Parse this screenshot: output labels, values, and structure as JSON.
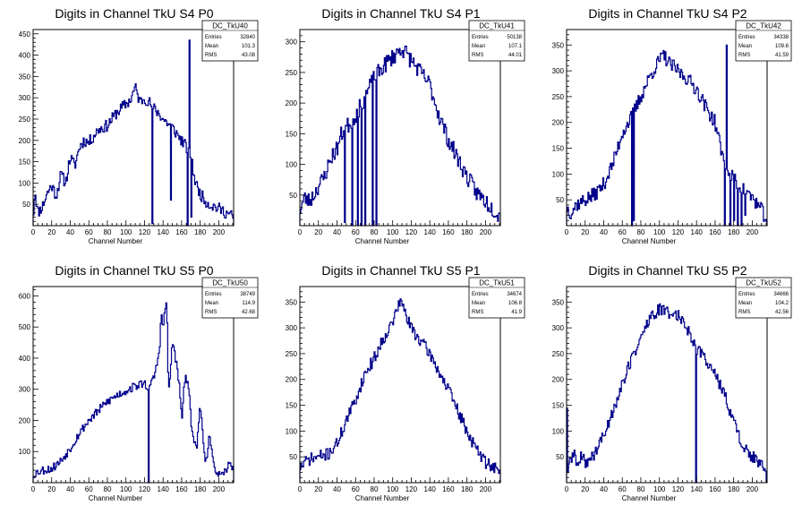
{
  "style": {
    "line_color": "#00008b",
    "axis_color": "#000000",
    "background": "#ffffff"
  },
  "chart_data": [
    {
      "type": "histogram",
      "title": "Digits in Channel TkU S4 P0",
      "xlabel": "Channel Number",
      "xlim": [
        0,
        216
      ],
      "ylim": [
        0,
        460
      ],
      "xticks": [
        0,
        20,
        40,
        60,
        80,
        100,
        120,
        140,
        160,
        180,
        200
      ],
      "yticks": [
        50,
        100,
        150,
        200,
        250,
        300,
        350,
        400,
        450
      ],
      "stats": {
        "name": "DC_TkU40",
        "entries": "32840",
        "mean": "101.3",
        "rms": "43.08"
      },
      "profile": [
        [
          0,
          15
        ],
        [
          2,
          85
        ],
        [
          5,
          30
        ],
        [
          10,
          45
        ],
        [
          15,
          75
        ],
        [
          20,
          95
        ],
        [
          25,
          70
        ],
        [
          30,
          120
        ],
        [
          35,
          100
        ],
        [
          40,
          160
        ],
        [
          45,
          140
        ],
        [
          50,
          185
        ],
        [
          55,
          200
        ],
        [
          60,
          195
        ],
        [
          70,
          225
        ],
        [
          80,
          235
        ],
        [
          90,
          265
        ],
        [
          100,
          285
        ],
        [
          105,
          295
        ],
        [
          110,
          325
        ],
        [
          115,
          290
        ],
        [
          120,
          300
        ],
        [
          125,
          290
        ],
        [
          130,
          275
        ],
        [
          135,
          265
        ],
        [
          140,
          250
        ],
        [
          150,
          230
        ],
        [
          160,
          200
        ],
        [
          165,
          185
        ],
        [
          170,
          160
        ],
        [
          175,
          100
        ],
        [
          180,
          75
        ],
        [
          185,
          60
        ],
        [
          190,
          50
        ],
        [
          200,
          40
        ],
        [
          210,
          28
        ],
        [
          216,
          20
        ]
      ],
      "spikes": [
        [
          128,
          5
        ],
        [
          148,
          60
        ],
        [
          166,
          0
        ],
        [
          168,
          435
        ],
        [
          170,
          20
        ]
      ],
      "amp": 14,
      "seed": 11
    },
    {
      "type": "histogram",
      "title": "Digits in Channel TkU S4 P1",
      "xlabel": "Channel Number",
      "xlim": [
        0,
        216
      ],
      "ylim": [
        0,
        320
      ],
      "xticks": [
        0,
        20,
        40,
        60,
        80,
        100,
        120,
        140,
        160,
        180,
        200
      ],
      "yticks": [
        50,
        100,
        150,
        200,
        250,
        300
      ],
      "stats": {
        "name": "DC_TkU41",
        "entries": "50138",
        "mean": "107.1",
        "rms": "44.01"
      },
      "profile": [
        [
          0,
          25
        ],
        [
          5,
          45
        ],
        [
          10,
          40
        ],
        [
          15,
          50
        ],
        [
          20,
          65
        ],
        [
          25,
          75
        ],
        [
          30,
          95
        ],
        [
          35,
          115
        ],
        [
          40,
          125
        ],
        [
          45,
          150
        ],
        [
          50,
          160
        ],
        [
          60,
          180
        ],
        [
          70,
          210
        ],
        [
          80,
          240
        ],
        [
          90,
          260
        ],
        [
          100,
          275
        ],
        [
          110,
          290
        ],
        [
          120,
          270
        ],
        [
          130,
          250
        ],
        [
          140,
          230
        ],
        [
          150,
          180
        ],
        [
          160,
          140
        ],
        [
          170,
          110
        ],
        [
          180,
          80
        ],
        [
          190,
          55
        ],
        [
          200,
          40
        ],
        [
          210,
          25
        ],
        [
          216,
          15
        ]
      ],
      "spikes": [
        [
          48,
          5
        ],
        [
          56,
          0
        ],
        [
          62,
          0
        ],
        [
          66,
          0
        ],
        [
          70,
          0
        ],
        [
          78,
          0
        ],
        [
          82,
          0
        ]
      ],
      "amp": 14,
      "seed": 23
    },
    {
      "type": "histogram",
      "title": "Digits in Channel TkU S4 P2",
      "xlabel": "Channel Number",
      "xlim": [
        0,
        216
      ],
      "ylim": [
        0,
        380
      ],
      "xticks": [
        0,
        20,
        40,
        60,
        80,
        100,
        120,
        140,
        160,
        180,
        200
      ],
      "yticks": [
        50,
        100,
        150,
        200,
        250,
        300,
        350
      ],
      "stats": {
        "name": "DC_TkU42",
        "entries": "34338",
        "mean": "109.6",
        "rms": "41.59"
      },
      "profile": [
        [
          0,
          35
        ],
        [
          5,
          25
        ],
        [
          10,
          40
        ],
        [
          20,
          50
        ],
        [
          30,
          60
        ],
        [
          40,
          80
        ],
        [
          50,
          120
        ],
        [
          60,
          180
        ],
        [
          70,
          210
        ],
        [
          80,
          250
        ],
        [
          90,
          290
        ],
        [
          100,
          320
        ],
        [
          105,
          330
        ],
        [
          110,
          315
        ],
        [
          120,
          300
        ],
        [
          130,
          285
        ],
        [
          140,
          265
        ],
        [
          150,
          230
        ],
        [
          160,
          200
        ],
        [
          165,
          160
        ],
        [
          170,
          120
        ],
        [
          180,
          90
        ],
        [
          190,
          70
        ],
        [
          200,
          55
        ],
        [
          210,
          30
        ],
        [
          216,
          10
        ]
      ],
      "spikes": [
        [
          70,
          0
        ],
        [
          72,
          10
        ],
        [
          170,
          0
        ],
        [
          172,
          350
        ],
        [
          176,
          0
        ],
        [
          180,
          10
        ],
        [
          184,
          0
        ],
        [
          188,
          0
        ],
        [
          192,
          20
        ]
      ],
      "amp": 14,
      "seed": 37
    },
    {
      "type": "histogram",
      "title": "Digits in Channel TkU S5 P0",
      "xlabel": "Channel Number",
      "xlim": [
        0,
        216
      ],
      "ylim": [
        0,
        630
      ],
      "xticks": [
        0,
        20,
        40,
        60,
        80,
        100,
        120,
        140,
        160,
        180,
        200
      ],
      "yticks": [
        100,
        200,
        300,
        400,
        500,
        600
      ],
      "stats": {
        "name": "DC_TkU50",
        "entries": "38749",
        "mean": "114.9",
        "rms": "42.68"
      },
      "profile": [
        [
          0,
          25
        ],
        [
          5,
          35
        ],
        [
          10,
          40
        ],
        [
          20,
          45
        ],
        [
          30,
          70
        ],
        [
          40,
          110
        ],
        [
          50,
          160
        ],
        [
          60,
          200
        ],
        [
          70,
          230
        ],
        [
          80,
          260
        ],
        [
          90,
          280
        ],
        [
          100,
          295
        ],
        [
          110,
          310
        ],
        [
          120,
          320
        ],
        [
          125,
          300
        ],
        [
          128,
          320
        ],
        [
          132,
          360
        ],
        [
          136,
          420
        ],
        [
          138,
          540
        ],
        [
          140,
          500
        ],
        [
          144,
          590
        ],
        [
          146,
          280
        ],
        [
          148,
          350
        ],
        [
          150,
          460
        ],
        [
          154,
          390
        ],
        [
          158,
          300
        ],
        [
          160,
          200
        ],
        [
          164,
          350
        ],
        [
          168,
          290
        ],
        [
          170,
          200
        ],
        [
          176,
          100
        ],
        [
          180,
          250
        ],
        [
          186,
          60
        ],
        [
          190,
          150
        ],
        [
          194,
          60
        ],
        [
          200,
          25
        ],
        [
          205,
          20
        ],
        [
          210,
          55
        ],
        [
          216,
          55
        ]
      ],
      "spikes": [
        [
          124,
          0
        ]
      ],
      "amp": 14,
      "seed": 53
    },
    {
      "type": "histogram",
      "title": "Digits in Channel TkU S5 P1",
      "xlabel": "Channel Number",
      "xlim": [
        0,
        216
      ],
      "ylim": [
        0,
        380
      ],
      "xticks": [
        0,
        20,
        40,
        60,
        80,
        100,
        120,
        140,
        160,
        180,
        200
      ],
      "yticks": [
        50,
        100,
        150,
        200,
        250,
        300,
        350
      ],
      "stats": {
        "name": "DC_TkU51",
        "entries": "34674",
        "mean": "106.8",
        "rms": "41.9"
      },
      "profile": [
        [
          0,
          30
        ],
        [
          10,
          45
        ],
        [
          20,
          50
        ],
        [
          30,
          55
        ],
        [
          40,
          75
        ],
        [
          50,
          120
        ],
        [
          60,
          160
        ],
        [
          70,
          210
        ],
        [
          80,
          240
        ],
        [
          90,
          280
        ],
        [
          100,
          310
        ],
        [
          105,
          340
        ],
        [
          110,
          350
        ],
        [
          115,
          320
        ],
        [
          120,
          300
        ],
        [
          130,
          275
        ],
        [
          140,
          250
        ],
        [
          150,
          215
        ],
        [
          160,
          180
        ],
        [
          170,
          140
        ],
        [
          180,
          100
        ],
        [
          190,
          65
        ],
        [
          200,
          40
        ],
        [
          210,
          30
        ],
        [
          216,
          15
        ]
      ],
      "spikes": [],
      "amp": 12,
      "seed": 71
    },
    {
      "type": "histogram",
      "title": "Digits in Channel TkU S5 P2",
      "xlabel": "Channel Number",
      "xlim": [
        0,
        216
      ],
      "ylim": [
        0,
        380
      ],
      "xticks": [
        0,
        20,
        40,
        60,
        80,
        100,
        120,
        140,
        160,
        180,
        200
      ],
      "yticks": [
        50,
        100,
        150,
        200,
        250,
        300,
        350
      ],
      "stats": {
        "name": "DC_TkU52",
        "entries": "34666",
        "mean": "104.2",
        "rms": "42.56"
      },
      "profile": [
        [
          0,
          280
        ],
        [
          1,
          20
        ],
        [
          4,
          40
        ],
        [
          8,
          60
        ],
        [
          12,
          30
        ],
        [
          16,
          50
        ],
        [
          20,
          40
        ],
        [
          25,
          45
        ],
        [
          30,
          55
        ],
        [
          35,
          75
        ],
        [
          40,
          90
        ],
        [
          50,
          140
        ],
        [
          60,
          190
        ],
        [
          70,
          240
        ],
        [
          80,
          280
        ],
        [
          90,
          320
        ],
        [
          100,
          335
        ],
        [
          110,
          330
        ],
        [
          120,
          325
        ],
        [
          130,
          300
        ],
        [
          140,
          260
        ],
        [
          150,
          240
        ],
        [
          160,
          210
        ],
        [
          170,
          170
        ],
        [
          180,
          120
        ],
        [
          190,
          70
        ],
        [
          200,
          50
        ],
        [
          210,
          35
        ],
        [
          216,
          5
        ]
      ],
      "spikes": [
        [
          139,
          0
        ],
        [
          141,
          260
        ]
      ],
      "amp": 12,
      "seed": 89
    }
  ]
}
